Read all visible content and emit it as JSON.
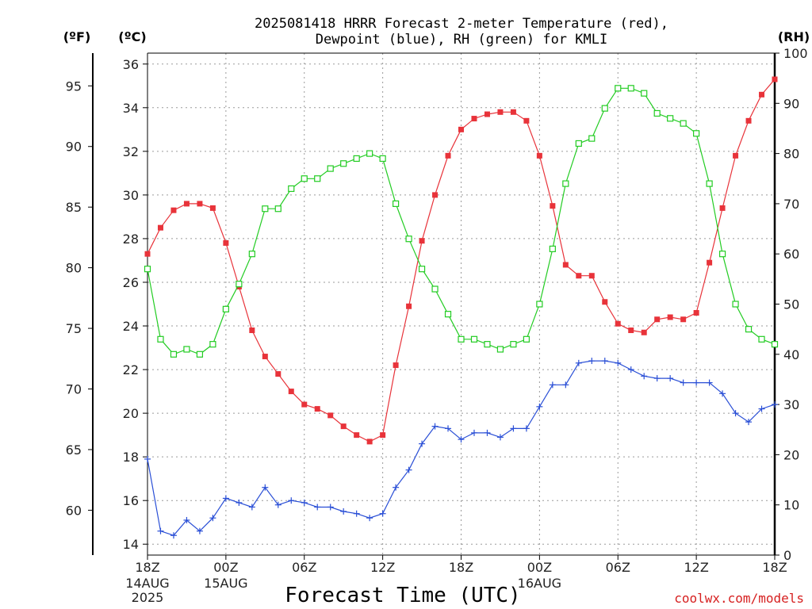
{
  "page": {
    "title_line1": "2025081418 HRRR Forecast 2-meter Temperature (red),",
    "title_line2": "Dewpoint (blue), RH (green) for KMLI",
    "unit_f": "(ºF)",
    "unit_c": "(ºC)",
    "unit_rh": "(RH)",
    "xlabel": "Forecast Time (UTC)",
    "credit": "coolwx.com/models",
    "date_labels": [
      {
        "x_hour": 0,
        "lines": [
          "14AUG",
          "2025"
        ]
      },
      {
        "x_hour": 6,
        "lines": [
          "15AUG"
        ]
      },
      {
        "x_hour": 30,
        "lines": [
          "16AUG"
        ]
      }
    ]
  },
  "chart_data": {
    "type": "line",
    "title": "2025081418 HRRR Forecast 2-meter Temperature (red), Dewpoint (blue), RH (green) for KMLI",
    "xlabel": "Forecast Time (UTC)",
    "x_unit": "forecast hour from 2025-08-14 18Z",
    "x": [
      0,
      1,
      2,
      3,
      4,
      5,
      6,
      7,
      8,
      9,
      10,
      11,
      12,
      13,
      14,
      15,
      16,
      17,
      18,
      19,
      20,
      21,
      22,
      23,
      24,
      25,
      26,
      27,
      28,
      29,
      30,
      31,
      32,
      33,
      34,
      35,
      36,
      37,
      38,
      39,
      40,
      41,
      42,
      43,
      44,
      45,
      46,
      47,
      48
    ],
    "xlim": [
      0,
      48
    ],
    "x_ticks": [
      {
        "hour": 0,
        "label": "18Z"
      },
      {
        "hour": 6,
        "label": "00Z"
      },
      {
        "hour": 12,
        "label": "06Z"
      },
      {
        "hour": 18,
        "label": "12Z"
      },
      {
        "hour": 24,
        "label": "18Z"
      },
      {
        "hour": 30,
        "label": "00Z"
      },
      {
        "hour": 36,
        "label": "06Z"
      },
      {
        "hour": 42,
        "label": "12Z"
      },
      {
        "hour": 48,
        "label": "18Z"
      }
    ],
    "y_celsius": {
      "label": "(ºC)",
      "ylim": [
        13.5,
        36.5
      ],
      "ticks": [
        14,
        16,
        18,
        20,
        22,
        24,
        26,
        28,
        30,
        32,
        34,
        36
      ]
    },
    "y_fahrenheit": {
      "label": "(ºF)",
      "ticks": [
        60,
        65,
        70,
        75,
        80,
        85,
        90,
        95
      ]
    },
    "y_rh": {
      "label": "(RH)",
      "ylim": [
        0,
        100
      ],
      "ticks": [
        0,
        10,
        20,
        30,
        40,
        50,
        60,
        70,
        80,
        90,
        100
      ]
    },
    "grid": true,
    "series": [
      {
        "name": "2-meter Temperature",
        "axis": "celsius",
        "color": "#e8333a",
        "marker": "filled-square",
        "values": [
          27.3,
          28.5,
          29.3,
          29.6,
          29.6,
          29.4,
          27.8,
          25.8,
          23.8,
          22.6,
          21.8,
          21.0,
          20.4,
          20.2,
          19.9,
          19.4,
          19.0,
          18.7,
          19.0,
          22.2,
          24.9,
          27.9,
          30.0,
          31.8,
          33.0,
          33.5,
          33.7,
          33.8,
          33.8,
          33.4,
          31.8,
          29.5,
          26.8,
          26.3,
          26.3,
          25.1,
          24.1,
          23.8,
          23.7,
          24.3,
          24.4,
          24.3,
          24.6,
          26.9,
          29.4,
          31.8,
          33.4,
          34.6,
          35.3
        ]
      },
      {
        "name": "Dewpoint",
        "axis": "celsius",
        "color": "#2a4fd6",
        "marker": "plus",
        "values": [
          17.9,
          14.6,
          14.4,
          15.1,
          14.6,
          15.2,
          16.1,
          15.9,
          15.7,
          16.6,
          15.8,
          16.0,
          15.9,
          15.7,
          15.7,
          15.5,
          15.4,
          15.2,
          15.4,
          16.6,
          17.4,
          18.6,
          19.4,
          19.3,
          18.8,
          19.1,
          19.1,
          18.9,
          19.3,
          19.3,
          20.3,
          21.3,
          21.3,
          22.3,
          22.4,
          22.4,
          22.3,
          22.0,
          21.7,
          21.6,
          21.6,
          21.4,
          21.4,
          21.4,
          20.9,
          20.0,
          19.6,
          20.2,
          20.4
        ]
      },
      {
        "name": "RH",
        "axis": "rh",
        "color": "#22cc22",
        "marker": "open-square",
        "values": [
          57,
          43,
          40,
          41,
          40,
          42,
          49,
          54,
          60,
          69,
          69,
          73,
          75,
          75,
          77,
          78,
          79,
          80,
          79,
          70,
          63,
          57,
          53,
          48,
          43,
          43,
          42,
          41,
          42,
          43,
          50,
          61,
          74,
          82,
          83,
          89,
          93,
          93,
          92,
          88,
          87,
          86,
          84,
          74,
          60,
          50,
          45,
          43,
          42
        ]
      }
    ]
  }
}
